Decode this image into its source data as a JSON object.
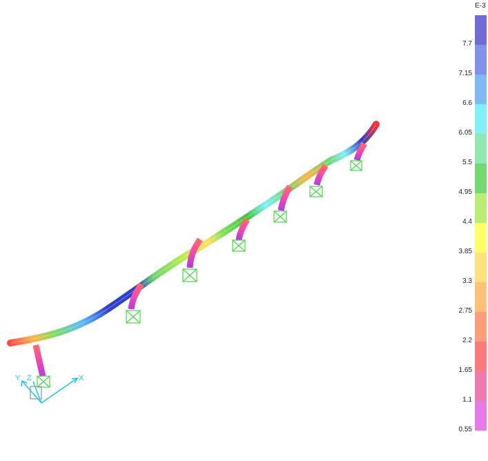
{
  "legend": {
    "exponent": "E-3",
    "ticks": [
      "7.7",
      "7.15",
      "6.6",
      "6.05",
      "5.5",
      "4.95",
      "4.4",
      "3.85",
      "3.3",
      "2.75",
      "2.2",
      "1.65",
      "1.1",
      "0.55"
    ],
    "colors": [
      "#6f6bd8",
      "#7f92e8",
      "#7fb8f2",
      "#7ff0f8",
      "#8ee8b0",
      "#6fd86f",
      "#b6ec6f",
      "#ffff66",
      "#ffe07a",
      "#ffc27a",
      "#ff9f7a",
      "#ff7a7a",
      "#f07ab0",
      "#e67ae6"
    ]
  },
  "axes": {
    "x_label": "X",
    "y_label": "Y",
    "z_label": "Z"
  },
  "colors": {
    "support_green": "#3fdc3f",
    "axis_cyan": "#19c8e6",
    "deck_blue": "#2d40c8"
  }
}
